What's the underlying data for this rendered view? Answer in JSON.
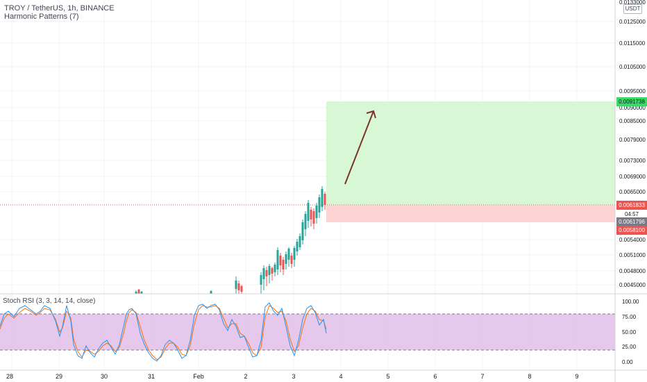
{
  "header": {
    "title": "TROY / TetherUS, 1h, BINANCE",
    "indicator": "Harmonic Patterns (7)"
  },
  "currency_badge": "USDT",
  "price_axis": {
    "ticks": [
      "0.0133000",
      "0.0125000",
      "0.0115000",
      "0.0105000",
      "0.0095000",
      "0.0090000",
      "0.0085000",
      "0.0079000",
      "0.0073000",
      "0.0069000",
      "0.0065000",
      "0.0054000",
      "0.0051000",
      "0.0048000",
      "0.0045000"
    ],
    "tags": {
      "target": "0.0091738",
      "entry": "0.0061833",
      "current": "0.0061796",
      "countdown": "04:57",
      "stop": "0.0058100"
    }
  },
  "time_axis": {
    "labels": [
      "28",
      "29",
      "30",
      "31",
      "Feb",
      "2",
      "3",
      "4",
      "5",
      "6",
      "7",
      "8",
      "9"
    ]
  },
  "stoch": {
    "label": "Stoch RSI (3, 3, 14, 14, close)",
    "ticks": [
      "100.00",
      "75.00",
      "50.00",
      "25.00",
      "0.00"
    ],
    "upper_band": 75,
    "lower_band": 20
  },
  "colors": {
    "up": "#26a69a",
    "down": "#ef5350",
    "k_line": "#2196f3",
    "d_line": "#ff6d00",
    "band_fill": "#e1bee7",
    "profit_zone": "#d7f7d5",
    "loss_zone": "#fdd3d3",
    "arrow": "#7b3328"
  }
}
